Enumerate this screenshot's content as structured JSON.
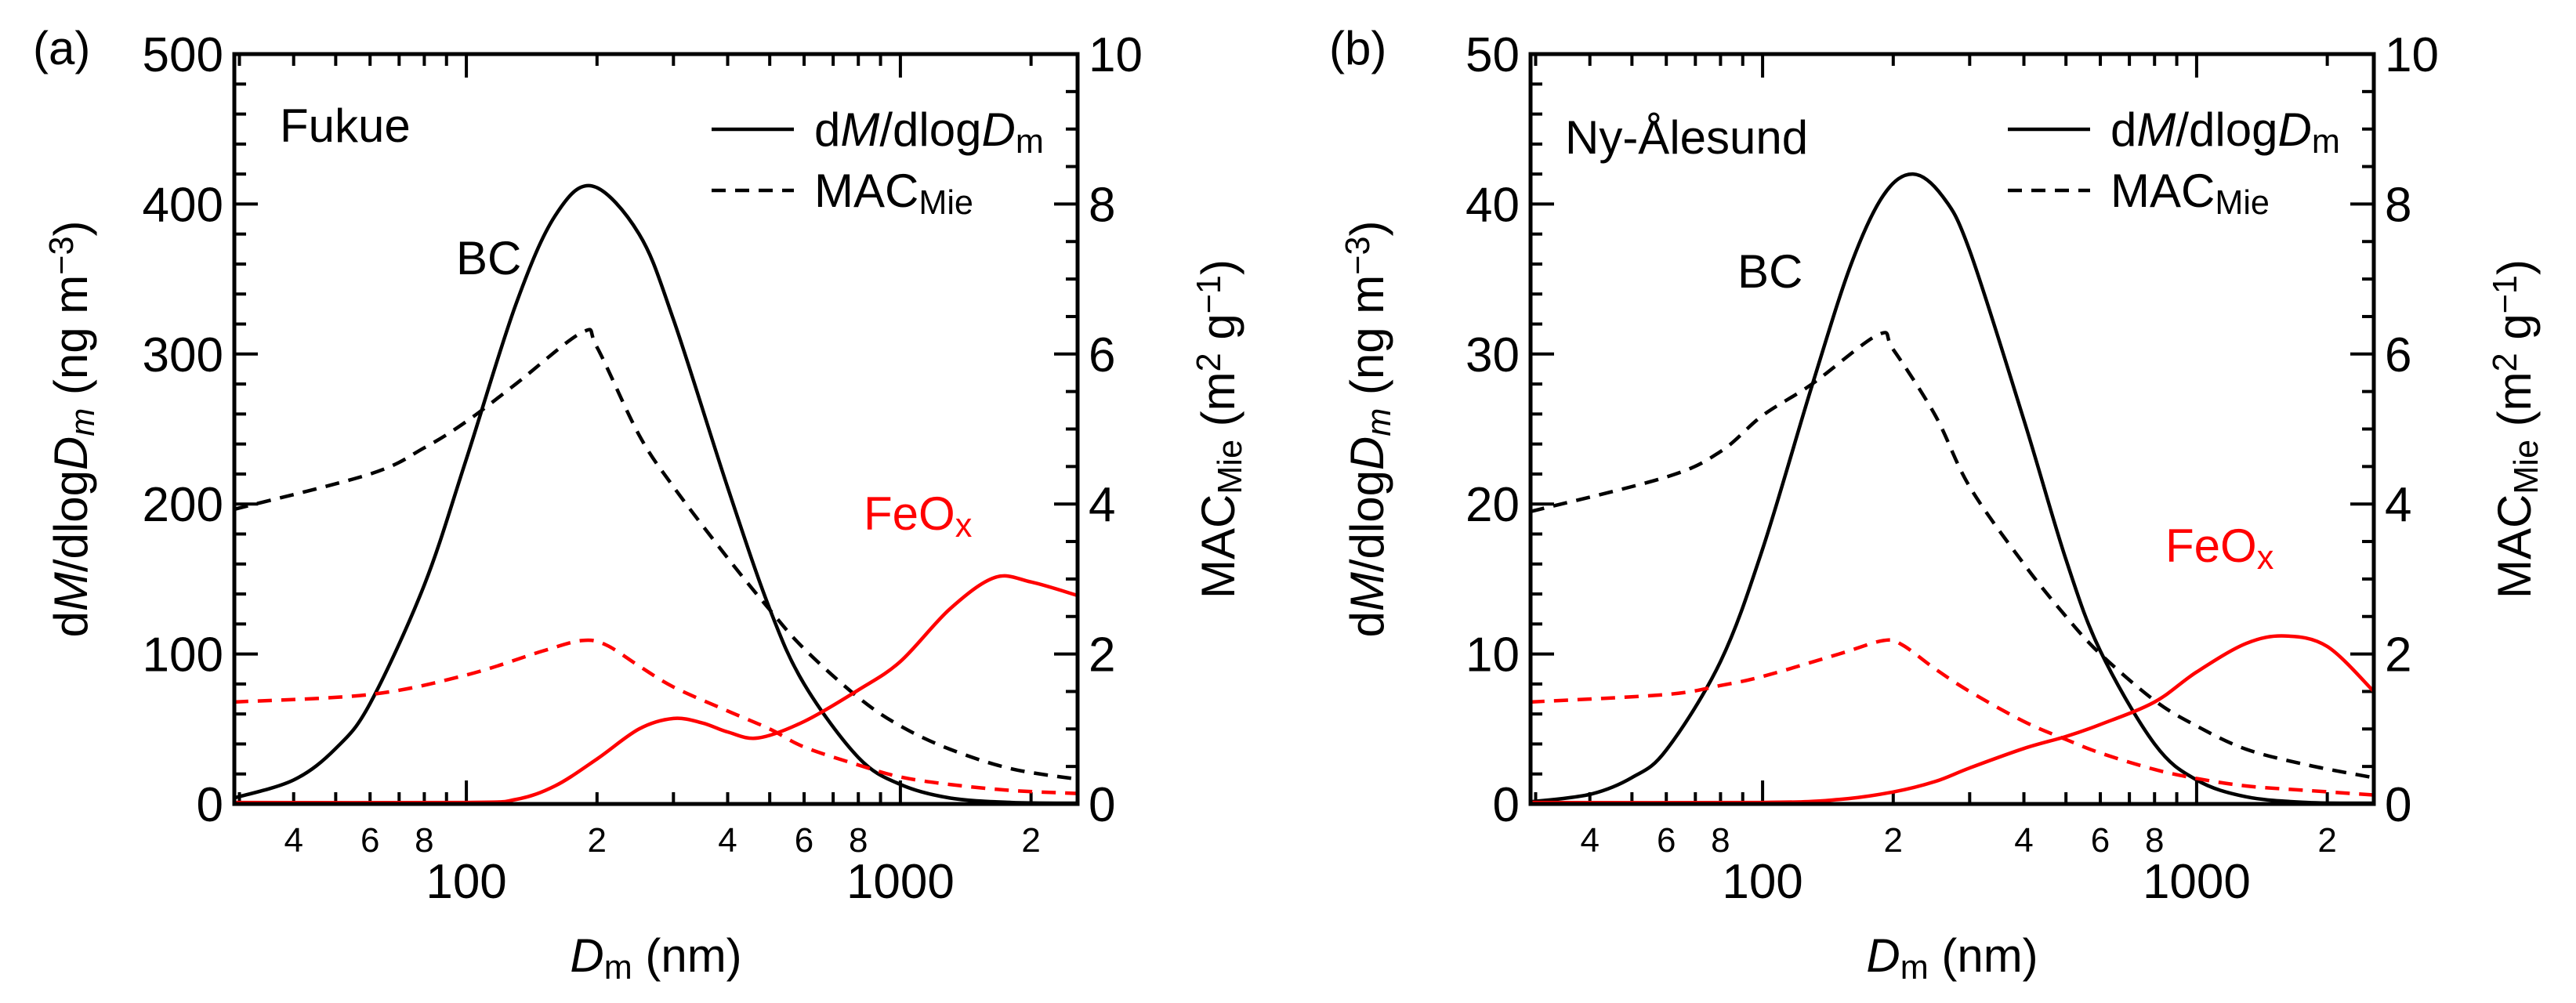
{
  "chart_data": [
    {
      "type": "line",
      "panel_label": "(a)",
      "site": "Fukue",
      "x_scale": "log",
      "xlim": [
        29.2,
        2560
      ],
      "ylim_left": [
        0,
        500
      ],
      "ylim_right": [
        0,
        10
      ],
      "yticks_left": [
        0,
        100,
        200,
        300,
        400,
        500
      ],
      "yticks_right": [
        0,
        2,
        4,
        6,
        8,
        10
      ],
      "xtick_labels_major": [
        {
          "v": 100,
          "t": "100"
        },
        {
          "v": 1000,
          "t": "1000"
        }
      ],
      "xtick_labels_minor": [
        {
          "v": 40,
          "t": "4"
        },
        {
          "v": 60,
          "t": "6"
        },
        {
          "v": 80,
          "t": "8"
        },
        {
          "v": 200,
          "t": "2"
        },
        {
          "v": 400,
          "t": "4"
        },
        {
          "v": 600,
          "t": "6"
        },
        {
          "v": 800,
          "t": "8"
        },
        {
          "v": 2000,
          "t": "2"
        }
      ],
      "xlabel": [
        {
          "t": "D",
          "i": true
        },
        {
          "t": "m",
          "sub": true
        },
        {
          "t": " (nm)"
        }
      ],
      "ylabel_left": [
        {
          "t": "d"
        },
        {
          "t": "M",
          "i": true
        },
        {
          "t": "/dlog"
        },
        {
          "t": "D",
          "i": true
        },
        {
          "t": "m",
          "sub": true,
          "i": true
        },
        {
          "t": " (ng m"
        },
        {
          "t": "−3",
          "sup": true
        },
        {
          "t": ")"
        }
      ],
      "ylabel_right": [
        {
          "t": "MAC"
        },
        {
          "t": "Mie",
          "sub": true
        },
        {
          "t": " (m"
        },
        {
          "t": "2",
          "sup": true
        },
        {
          "t": " g"
        },
        {
          "t": "−1",
          "sup": true
        },
        {
          "t": ")"
        }
      ],
      "legend": [
        {
          "style": "solid",
          "parts": [
            {
              "t": "d"
            },
            {
              "t": "M",
              "i": true
            },
            {
              "t": "/dlog"
            },
            {
              "t": "D",
              "i": true
            },
            {
              "t": "m",
              "sub": true
            }
          ]
        },
        {
          "style": "dashed",
          "parts": [
            {
              "t": "MAC"
            },
            {
              "t": "Mie",
              "sub": true
            }
          ]
        }
      ],
      "annotations": [
        {
          "text": "BC",
          "color": "#000000"
        },
        {
          "parts": [
            {
              "t": "FeO"
            },
            {
              "t": "x",
              "sub": true
            }
          ],
          "color": "#ff0000"
        }
      ],
      "series": [
        {
          "species": "BC",
          "quantity": "dM/dlogDm",
          "axis": "left",
          "color": "#000000",
          "style": "solid",
          "x": [
            29.2,
            40,
            50,
            60,
            80,
            100,
            130,
            160,
            195,
            250,
            300,
            400,
            500,
            600,
            800,
            1000,
            1300,
            1800,
            2560
          ],
          "y": [
            4,
            16,
            37,
            67,
            146,
            230,
            333,
            392,
            412,
            380,
            323,
            211,
            130,
            80,
            31,
            13,
            4,
            1,
            0.5
          ]
        },
        {
          "species": "BC",
          "quantity": "MAC_Mie",
          "axis": "right",
          "color": "#000000",
          "style": "dashed",
          "x": [
            29.2,
            60,
            80,
            100,
            130,
            185,
            200,
            250,
            300,
            400,
            500,
            600,
            800,
            1000,
            1300,
            1800,
            2560
          ],
          "y": [
            3.93,
            4.4,
            4.75,
            5.1,
            5.6,
            6.29,
            6.09,
            4.92,
            4.23,
            3.28,
            2.59,
            2.07,
            1.42,
            1.04,
            0.73,
            0.47,
            0.33
          ]
        },
        {
          "species": "FeOx",
          "quantity": "dM/dlogDm",
          "axis": "left",
          "color": "#ff0000",
          "style": "solid",
          "x": [
            29.2,
            100,
            130,
            160,
            200,
            250,
            300,
            350,
            400,
            470,
            600,
            800,
            1000,
            1300,
            1650,
            2000,
            2560
          ],
          "y": [
            1,
            1,
            3,
            12,
            30,
            50,
            57,
            54,
            48,
            44,
            55,
            76,
            95,
            130,
            151,
            148,
            139
          ]
        },
        {
          "species": "FeOx",
          "quantity": "MAC_Mie",
          "axis": "right",
          "color": "#ff0000",
          "style": "dashed",
          "x": [
            29.2,
            60,
            100,
            150,
            185,
            210,
            250,
            300,
            400,
            500,
            600,
            800,
            1000,
            1300,
            1800,
            2560
          ],
          "y": [
            1.36,
            1.46,
            1.72,
            2.04,
            2.18,
            2.12,
            1.84,
            1.56,
            1.24,
            1.0,
            0.76,
            0.52,
            0.36,
            0.26,
            0.18,
            0.14
          ]
        }
      ]
    },
    {
      "type": "line",
      "panel_label": "(b)",
      "site": "Ny-Ålesund",
      "x_scale": "log",
      "xlim": [
        29.2,
        2560
      ],
      "ylim_left": [
        0,
        50
      ],
      "ylim_right": [
        0,
        10
      ],
      "yticks_left": [
        0,
        10,
        20,
        30,
        40,
        50
      ],
      "yticks_right": [
        0,
        2,
        4,
        6,
        8,
        10
      ],
      "xtick_labels_major": [
        {
          "v": 100,
          "t": "100"
        },
        {
          "v": 1000,
          "t": "1000"
        }
      ],
      "xtick_labels_minor": [
        {
          "v": 40,
          "t": "4"
        },
        {
          "v": 60,
          "t": "6"
        },
        {
          "v": 80,
          "t": "8"
        },
        {
          "v": 200,
          "t": "2"
        },
        {
          "v": 400,
          "t": "4"
        },
        {
          "v": 600,
          "t": "6"
        },
        {
          "v": 800,
          "t": "8"
        },
        {
          "v": 2000,
          "t": "2"
        }
      ],
      "xlabel": [
        {
          "t": "D",
          "i": true
        },
        {
          "t": "m",
          "sub": true
        },
        {
          "t": " (nm)"
        }
      ],
      "ylabel_left": [
        {
          "t": "d"
        },
        {
          "t": "M",
          "i": true
        },
        {
          "t": "/dlog"
        },
        {
          "t": "D",
          "i": true
        },
        {
          "t": "m",
          "sub": true,
          "i": true
        },
        {
          "t": " (ng m"
        },
        {
          "t": "−3",
          "sup": true
        },
        {
          "t": ")"
        }
      ],
      "ylabel_right": [
        {
          "t": "MAC"
        },
        {
          "t": "Mie",
          "sub": true
        },
        {
          "t": " (m"
        },
        {
          "t": "2",
          "sup": true
        },
        {
          "t": " g"
        },
        {
          "t": "−1",
          "sup": true
        },
        {
          "t": ")"
        }
      ],
      "legend": [
        {
          "style": "solid",
          "parts": [
            {
              "t": "d"
            },
            {
              "t": "M",
              "i": true
            },
            {
              "t": "/dlog"
            },
            {
              "t": "D",
              "i": true
            },
            {
              "t": "m",
              "sub": true
            }
          ]
        },
        {
          "style": "dashed",
          "parts": [
            {
              "t": "MAC"
            },
            {
              "t": "Mie",
              "sub": true
            }
          ]
        }
      ],
      "annotations": [
        {
          "text": "BC",
          "color": "#000000"
        },
        {
          "parts": [
            {
              "t": "FeO"
            },
            {
              "t": "x",
              "sub": true
            }
          ],
          "color": "#ff0000"
        }
      ],
      "series": [
        {
          "species": "BC",
          "quantity": "dM/dlogDm",
          "axis": "left",
          "color": "#000000",
          "style": "solid",
          "x": [
            29.2,
            40,
            50,
            60,
            80,
            100,
            130,
            160,
            190,
            222,
            260,
            300,
            400,
            500,
            600,
            800,
            1000,
            1300,
            1800,
            2560
          ],
          "y": [
            0.14,
            0.64,
            1.76,
            3.6,
            9.5,
            17.0,
            27.9,
            36.0,
            40.6,
            42,
            40.5,
            36.9,
            25.6,
            16.3,
            10.2,
            4.0,
            1.6,
            0.48,
            0.1,
            0.05
          ]
        },
        {
          "species": "BC",
          "quantity": "MAC_Mie",
          "axis": "right",
          "color": "#000000",
          "style": "dashed",
          "x": [
            29.2,
            60,
            80,
            100,
            130,
            185,
            200,
            250,
            300,
            400,
            500,
            600,
            800,
            1000,
            1300,
            1800,
            2560
          ],
          "y": [
            3.9,
            4.36,
            4.7,
            5.18,
            5.6,
            6.26,
            6.06,
            5.18,
            4.23,
            3.2,
            2.5,
            2.0,
            1.38,
            1.04,
            0.73,
            0.52,
            0.35
          ]
        },
        {
          "species": "FeOx",
          "quantity": "dM/dlogDm",
          "axis": "left",
          "color": "#ff0000",
          "style": "solid",
          "x": [
            29.2,
            100,
            150,
            200,
            250,
            300,
            400,
            500,
            600,
            800,
            1000,
            1300,
            1600,
            2000,
            2560
          ],
          "y": [
            0.1,
            0.1,
            0.3,
            0.8,
            1.5,
            2.4,
            3.7,
            4.5,
            5.3,
            6.8,
            8.8,
            10.7,
            11.2,
            10.5,
            7.5
          ]
        },
        {
          "species": "FeOx",
          "quantity": "MAC_Mie",
          "axis": "right",
          "color": "#ff0000",
          "style": "dashed",
          "x": [
            29.2,
            60,
            80,
            100,
            150,
            190,
            210,
            250,
            300,
            400,
            500,
            600,
            800,
            1000,
            1300,
            1800,
            2560
          ],
          "y": [
            1.36,
            1.46,
            1.58,
            1.7,
            2.0,
            2.18,
            2.12,
            1.8,
            1.5,
            1.1,
            0.86,
            0.68,
            0.46,
            0.34,
            0.24,
            0.18,
            0.12
          ]
        }
      ]
    }
  ]
}
